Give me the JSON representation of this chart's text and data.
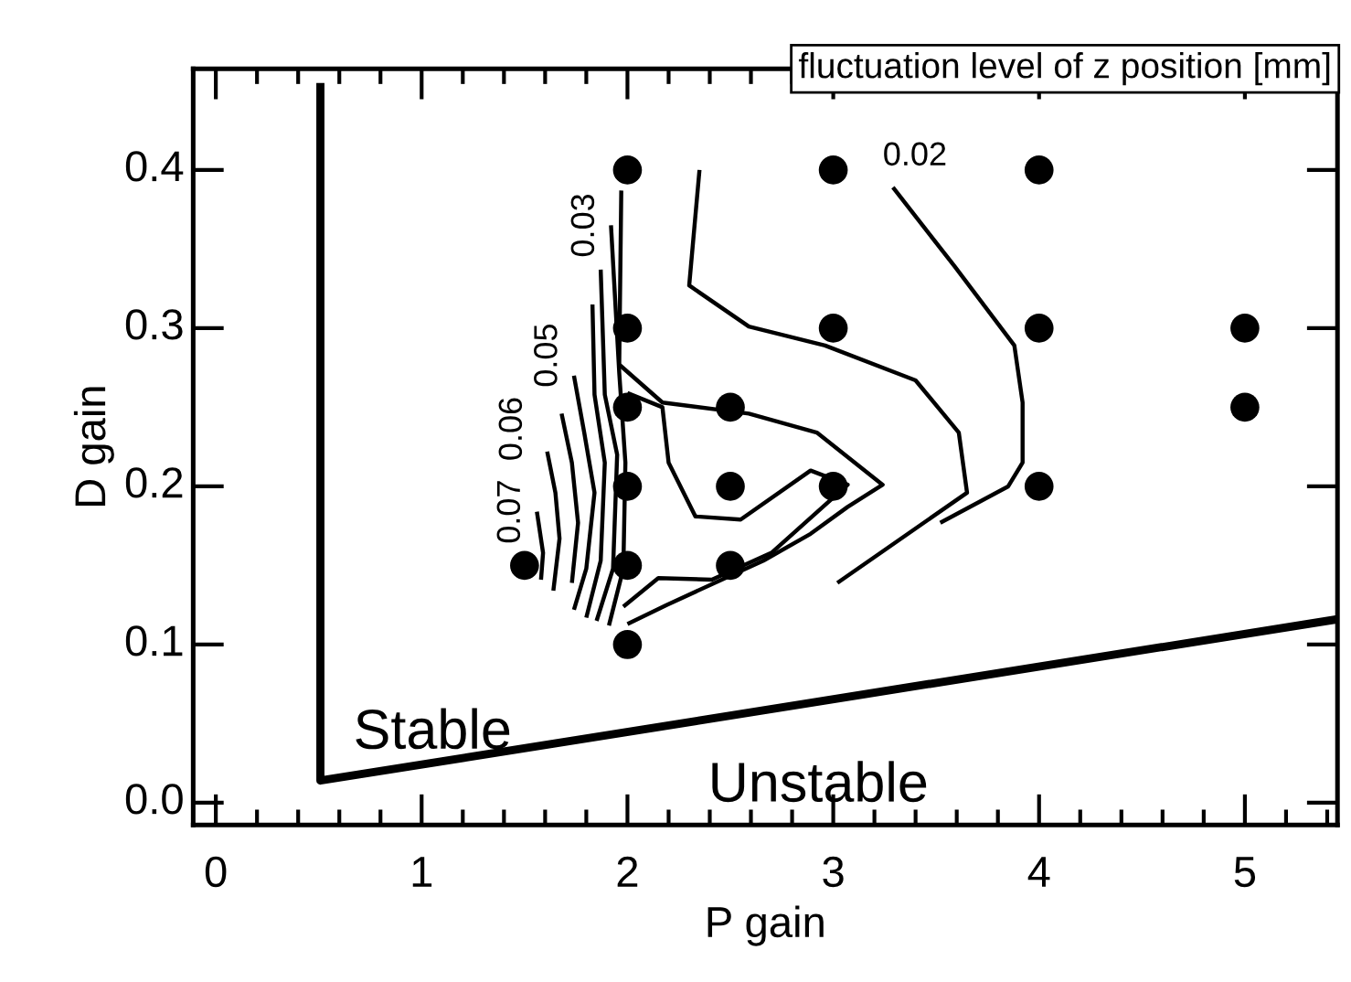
{
  "chart_data": {
    "type": "scatter",
    "xlabel": "P gain",
    "ylabel": "D gain",
    "xlim": [
      -0.11,
      5.45
    ],
    "ylim": [
      -0.014,
      0.464
    ],
    "xticks": [
      0,
      1,
      2,
      3,
      4,
      5
    ],
    "yticks": [
      {
        "value": 0,
        "label": "0.0"
      },
      0.1,
      0.2,
      0.3,
      0.4
    ],
    "grid": false,
    "legend": false,
    "annotations": [
      "fluctuation level of z position [mm]",
      "Stable",
      "Unstable"
    ],
    "series": [
      {
        "type": "line",
        "color": "#000000",
        "x": [
          0.508,
          0.508,
          5.45
        ],
        "values": [
          0.455,
          0.014,
          0.116
        ]
      },
      {
        "type": "line",
        "name": "0.02",
        "color": "#000000",
        "x": [
          3.29,
          3.59,
          3.88,
          3.92,
          3.92,
          3.85,
          3.52
        ],
        "values": [
          0.389,
          0.339,
          0.289,
          0.253,
          0.215,
          0.2,
          0.177
        ]
      },
      {
        "type": "line",
        "color": "#000000",
        "x": [
          2.35,
          2.3,
          2.59,
          2.96,
          3.4,
          3.61,
          3.65,
          3.02
        ],
        "values": [
          0.4,
          0.327,
          0.301,
          0.289,
          0.267,
          0.234,
          0.196,
          0.139
        ]
      },
      {
        "type": "line",
        "color": "#000000",
        "x": [
          1.97,
          1.96,
          2.17,
          2.59,
          2.92,
          3.24,
          3.07,
          2.89,
          2.66,
          2.19,
          2.0
        ],
        "values": [
          0.387,
          0.277,
          0.253,
          0.246,
          0.234,
          0.201,
          0.187,
          0.17,
          0.153,
          0.125,
          0.113
        ]
      },
      {
        "type": "line",
        "color": "#000000",
        "x": [
          2.0,
          2.17,
          2.2,
          2.33,
          2.55,
          2.89,
          3.07,
          2.7,
          2.41,
          2.15,
          1.98
        ],
        "values": [
          0.259,
          0.25,
          0.215,
          0.181,
          0.179,
          0.21,
          0.201,
          0.158,
          0.141,
          0.142,
          0.124
        ]
      },
      {
        "type": "line",
        "name": "0.03",
        "color": "#000000",
        "x": [
          1.92,
          1.96,
          1.99,
          1.98,
          1.91
        ],
        "values": [
          0.365,
          0.272,
          0.215,
          0.148,
          0.112
        ]
      },
      {
        "type": "line",
        "color": "#000000",
        "x": [
          1.87,
          1.89,
          1.95,
          1.93,
          1.85
        ],
        "values": [
          0.337,
          0.258,
          0.22,
          0.148,
          0.115
        ]
      },
      {
        "type": "line",
        "color": "#000000",
        "x": [
          1.83,
          1.84,
          1.89,
          1.87,
          1.8
        ],
        "values": [
          0.315,
          0.258,
          0.215,
          0.153,
          0.117
        ]
      },
      {
        "type": "line",
        "name": "0.05",
        "color": "#000000",
        "x": [
          1.74,
          1.79,
          1.84,
          1.8,
          1.74
        ],
        "values": [
          0.27,
          0.234,
          0.196,
          0.148,
          0.122
        ]
      },
      {
        "type": "line",
        "name": "0.06",
        "color": "#000000",
        "x": [
          1.68,
          1.73,
          1.76,
          1.73
        ],
        "values": [
          0.246,
          0.215,
          0.177,
          0.139
        ]
      },
      {
        "type": "line",
        "color": "#000000",
        "x": [
          1.61,
          1.65,
          1.67,
          1.64
        ],
        "values": [
          0.222,
          0.196,
          0.167,
          0.134
        ]
      },
      {
        "type": "line",
        "name": "0.07",
        "color": "#000000",
        "x": [
          1.56,
          1.59,
          1.58
        ],
        "values": [
          0.184,
          0.158,
          0.141
        ]
      },
      {
        "marker": "circle",
        "color": "#000000",
        "x": [
          2,
          3,
          4,
          2,
          3,
          4,
          5,
          2,
          2.5,
          5,
          2,
          2.5,
          3,
          4,
          1.5,
          2,
          2.5,
          2
        ],
        "values": [
          0.4,
          0.4,
          0.4,
          0.3,
          0.3,
          0.3,
          0.3,
          0.25,
          0.25,
          0.25,
          0.2,
          0.2,
          0.2,
          0.2,
          0.15,
          0.15,
          0.15,
          0.1
        ]
      }
    ]
  }
}
